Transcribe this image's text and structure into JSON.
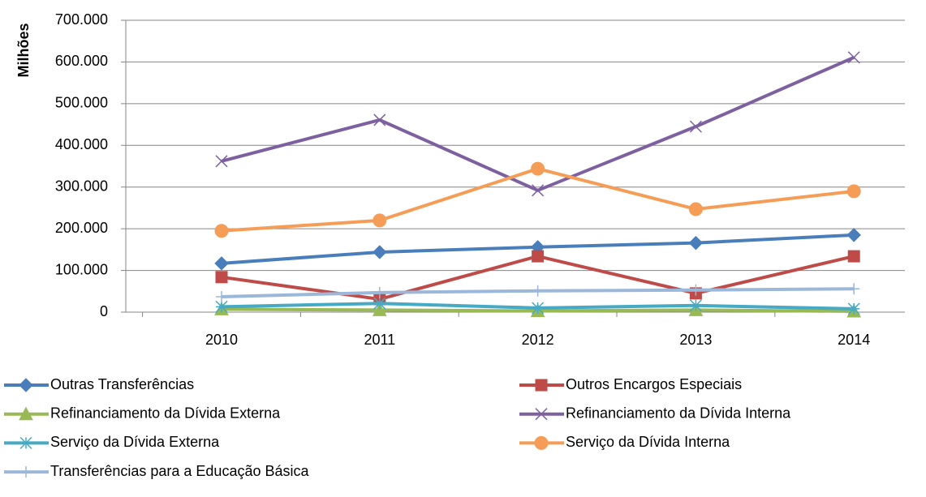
{
  "chart_data": {
    "type": "line",
    "y_label": "Milhões",
    "categories": [
      "2010",
      "2011",
      "2012",
      "2013",
      "2014"
    ],
    "ylim": [
      0,
      700000
    ],
    "yticks": [
      0,
      {
        "value": 100000,
        "label": "100.000"
      },
      {
        "value": 200000,
        "label": "200.000"
      },
      {
        "value": 300000,
        "label": "300.000"
      },
      {
        "value": 400000,
        "label": "400.000"
      },
      {
        "value": 500000,
        "label": "500.000"
      },
      {
        "value": 600000,
        "label": "600.000"
      },
      {
        "value": 700000,
        "label": "700.000"
      }
    ],
    "grid": true,
    "legend": "bottom",
    "series": [
      {
        "name": "Outras Transferências",
        "color": "#4a7ebb",
        "marker": "diamond",
        "values": [
          117000,
          144000,
          156000,
          166000,
          185000
        ]
      },
      {
        "name": "Outros Encargos Especiais",
        "color": "#be4b48",
        "marker": "square",
        "values": [
          84000,
          31000,
          134000,
          45000,
          134000
        ]
      },
      {
        "name": "Refinanciamento da Dívida Externa",
        "color": "#98b954",
        "marker": "triangle",
        "values": [
          7000,
          5000,
          3000,
          5000,
          2000
        ]
      },
      {
        "name": "Refinanciamento da Dívida Interna",
        "color": "#7d60a0",
        "marker": "x",
        "values": [
          362000,
          461000,
          292000,
          445000,
          611000
        ]
      },
      {
        "name": "Serviço da Dívida Externa",
        "color": "#46aac5",
        "marker": "star",
        "values": [
          13000,
          21000,
          10000,
          16000,
          8000
        ]
      },
      {
        "name": "Serviço da Dívida Interna",
        "color": "#f59d56",
        "marker": "circle",
        "values": [
          195000,
          220000,
          344000,
          247000,
          290000
        ]
      },
      {
        "name": "Transferências para a Educação Básica",
        "color": "#9bb7d9",
        "marker": "plus",
        "values": [
          37000,
          47000,
          51000,
          53000,
          56000
        ]
      }
    ]
  }
}
